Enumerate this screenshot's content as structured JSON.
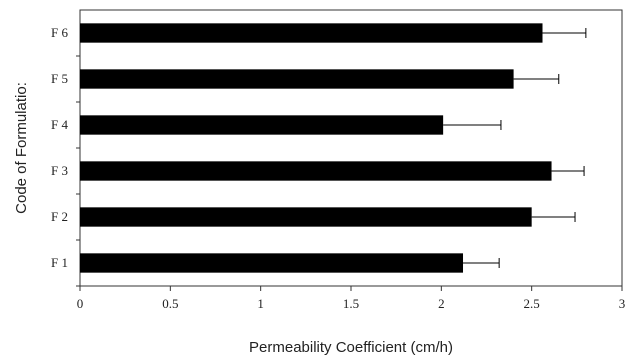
{
  "chart_data": {
    "type": "bar",
    "orientation": "horizontal",
    "title": "",
    "xlabel": "Permeability Coefficient (cm/h)",
    "ylabel": "Code of Formulatio:",
    "categories": [
      "F 1",
      "F 2",
      "F 3",
      "F 4",
      "F 5",
      "F 6"
    ],
    "values": [
      2.12,
      2.5,
      2.61,
      2.01,
      2.4,
      2.56
    ],
    "error_bars": [
      0.2,
      0.24,
      0.18,
      0.32,
      0.25,
      0.24
    ],
    "xlim": [
      0,
      3
    ],
    "xticks": [
      "0",
      "0.5",
      "1",
      "1.5",
      "2",
      "2.5",
      "3"
    ],
    "grid": false,
    "legend": "none",
    "bar_color": "#000000"
  }
}
